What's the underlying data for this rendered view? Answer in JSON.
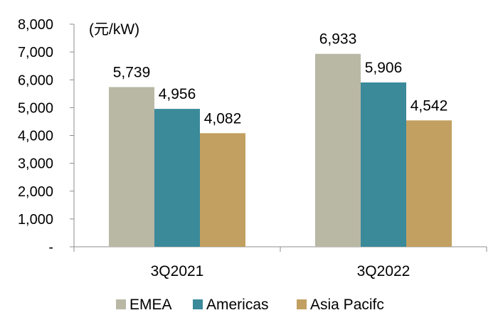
{
  "chart_data": {
    "type": "bar",
    "title": "",
    "unit_label": "(元/kW)",
    "xlabel": "",
    "ylabel": "",
    "categories": [
      "3Q2021",
      "3Q2022"
    ],
    "series": [
      {
        "name": "EMEA",
        "color": "#b9b8a5",
        "values": [
          5739,
          6933
        ],
        "labels": [
          "5,739",
          "6,933"
        ]
      },
      {
        "name": "Americas",
        "color": "#3a8a9a",
        "values": [
          4956,
          5906
        ],
        "labels": [
          "4,956",
          "5,906"
        ]
      },
      {
        "name": "Asia Pacifc",
        "color": "#c2a061",
        "values": [
          4082,
          4542
        ],
        "labels": [
          "4,082",
          "4,542"
        ]
      }
    ],
    "ylim": [
      0,
      8000
    ],
    "yticks": [
      0,
      1000,
      2000,
      3000,
      4000,
      5000,
      6000,
      7000,
      8000
    ],
    "ytick_labels": [
      "-",
      "1,000",
      "2,000",
      "3,000",
      "4,000",
      "5,000",
      "6,000",
      "7,000",
      "8,000"
    ],
    "grid": false,
    "legend": "bottom"
  }
}
